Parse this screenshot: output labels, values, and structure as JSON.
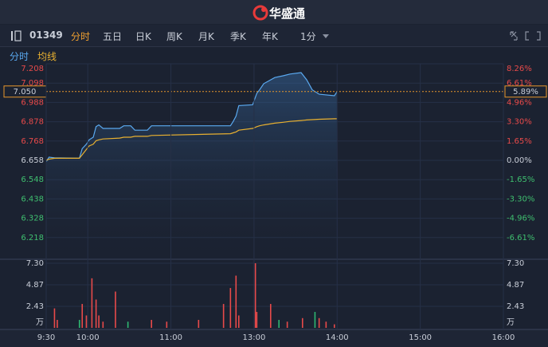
{
  "header": {
    "logo": "华盛通"
  },
  "toolbar": {
    "code": "01349",
    "tabs": [
      "分时",
      "五日",
      "日K",
      "周K",
      "月K",
      "季K",
      "年K",
      "1分"
    ]
  },
  "chart_data": [
    {
      "type": "line",
      "x": [
        0,
        2,
        6,
        24,
        26,
        29,
        31,
        34,
        36,
        38,
        41,
        53,
        56,
        61,
        64,
        73,
        76,
        133,
        135,
        137,
        139,
        149,
        152,
        154,
        157,
        165,
        171,
        176,
        184,
        188,
        192,
        197,
        208,
        210
      ],
      "series": [
        {
          "name": "分时",
          "color": "#5aa9f0",
          "values": [
            6.65,
            6.676,
            6.672,
            6.67,
            6.725,
            6.75,
            6.775,
            6.79,
            6.85,
            6.86,
            6.84,
            6.84,
            6.855,
            6.855,
            6.83,
            6.83,
            6.855,
            6.855,
            6.88,
            6.91,
            6.97,
            6.975,
            7.04,
            7.06,
            7.095,
            7.13,
            7.14,
            7.15,
            7.158,
            7.117,
            7.06,
            7.035,
            7.026,
            7.05
          ]
        },
        {
          "name": "均线",
          "color": "#e8b030",
          "values": [
            6.658,
            6.665,
            6.67,
            6.67,
            6.69,
            6.72,
            6.74,
            6.75,
            6.77,
            6.775,
            6.78,
            6.785,
            6.79,
            6.79,
            6.795,
            6.795,
            6.8,
            6.81,
            6.815,
            6.82,
            6.83,
            6.84,
            6.85,
            6.855,
            6.86,
            6.87,
            6.875,
            6.88,
            6.885,
            6.888,
            6.89,
            6.892,
            6.895,
            6.895
          ]
        }
      ],
      "xlim": [
        0,
        330
      ],
      "ylim": [
        6.108,
        7.208
      ],
      "yticks": [
        7.208,
        7.098,
        6.988,
        6.878,
        6.768,
        6.658,
        6.548,
        6.438,
        6.328,
        6.218
      ],
      "y2lim": [
        -8.26,
        8.26
      ],
      "y2ticks": [
        {
          "value": 8.26,
          "label": "8.26%"
        },
        {
          "value": 6.61,
          "label": "6.61%"
        },
        {
          "value": 4.96,
          "label": "4.96%"
        },
        {
          "value": 3.3,
          "label": "3.30%"
        },
        {
          "value": 1.65,
          "label": "1.65%"
        },
        {
          "value": 0,
          "label": "0.00%"
        },
        {
          "value": -1.65,
          "label": "-1.65%"
        },
        {
          "value": -3.3,
          "label": "-3.30%"
        },
        {
          "value": -4.96,
          "label": "-4.96%"
        },
        {
          "value": -6.61,
          "label": "-6.61%"
        }
      ],
      "last_price": {
        "value": 7.05,
        "label": "7.050"
      },
      "last_change": {
        "value": 5.89,
        "label": "5.89%"
      },
      "grid": true
    },
    {
      "type": "bar",
      "y_unit": "万",
      "x": [
        6,
        8,
        24,
        26,
        29,
        33,
        36,
        38,
        41,
        50,
        59,
        76,
        87,
        110,
        128,
        133,
        137,
        139,
        151,
        152,
        162,
        168,
        174,
        185,
        194,
        197,
        202,
        208
      ],
      "values": [
        2.2,
        0.9,
        0.9,
        2.7,
        1.4,
        5.6,
        3.2,
        1.4,
        0.7,
        4.1,
        0.7,
        0.9,
        0.7,
        0.9,
        2.7,
        4.5,
        5.9,
        1.4,
        7.3,
        1.8,
        2.7,
        0.9,
        0.7,
        1.1,
        1.8,
        1.1,
        0.7,
        0.4
      ],
      "colors": [
        "#e84a4a",
        "#e84a4a",
        "#2eb872",
        "#e84a4a",
        "#e84a4a",
        "#e84a4a",
        "#e84a4a",
        "#e84a4a",
        "#e84a4a",
        "#e84a4a",
        "#2eb872",
        "#e84a4a",
        "#e84a4a",
        "#e84a4a",
        "#e84a4a",
        "#e84a4a",
        "#e84a4a",
        "#e84a4a",
        "#e84a4a",
        "#e84a4a",
        "#e84a4a",
        "#2eb872",
        "#e84a4a",
        "#e84a4a",
        "#2eb872",
        "#e84a4a",
        "#e84a4a",
        "#e84a4a"
      ],
      "xlim": [
        0,
        330
      ],
      "xticks": [
        {
          "value": 0,
          "label": "9:30"
        },
        {
          "value": 30,
          "label": "10:00"
        },
        {
          "value": 90,
          "label": "11:00"
        },
        {
          "value": 150,
          "label": "13:00"
        },
        {
          "value": 210,
          "label": "14:00"
        },
        {
          "value": 270,
          "label": "15:00"
        },
        {
          "value": 330,
          "label": "16:00"
        }
      ],
      "ylim": [
        0,
        7.3
      ],
      "yticks": [
        {
          "value": 7.3,
          "label": "7.30"
        },
        4.87,
        2.43
      ]
    }
  ]
}
